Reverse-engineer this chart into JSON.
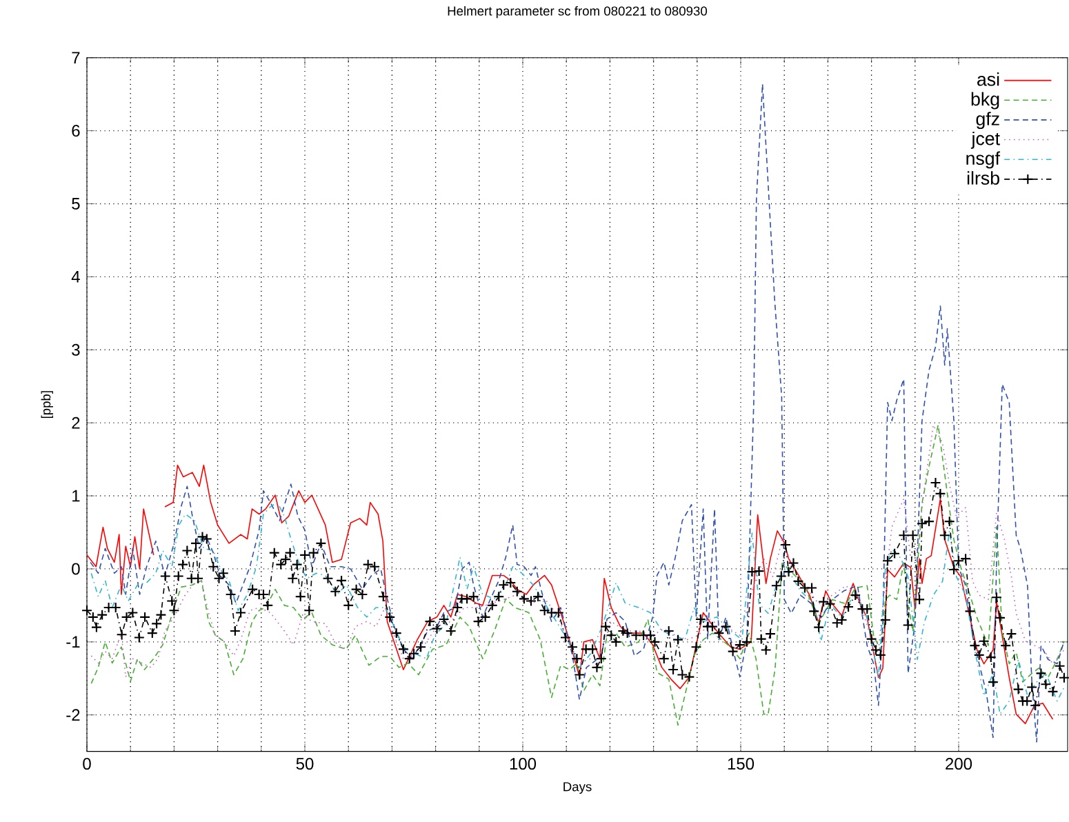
{
  "chart_data": {
    "type": "line",
    "title": "Helmert parameter sc from 080221 to 080930",
    "xlabel": "Days",
    "ylabel": "[ppb]",
    "xlim": [
      0,
      225
    ],
    "ylim": [
      -2.5,
      7
    ],
    "xticks": [
      0,
      50,
      100,
      150,
      200
    ],
    "yticks": [
      -2,
      -1,
      0,
      1,
      2,
      3,
      4,
      5,
      6,
      7
    ],
    "grid": true,
    "legend": "top right",
    "series": [
      {
        "name": "asi",
        "color": "#ff0000",
        "line_style": "solid",
        "marker": "none",
        "x": [
          0,
          2.1,
          3.7,
          4.7,
          6.3,
          7.4,
          7.9,
          8.9,
          10,
          11,
          12.1,
          13,
          15.3,
          16.5,
          17.9,
          19.8,
          20.8,
          22.1,
          24.2,
          25.8,
          26.8,
          28.4,
          30,
          32.6,
          35.3,
          36.8,
          37.9,
          39.5,
          41,
          43.2,
          44.7,
          46.3,
          48.6,
          50,
          51.6,
          54.7,
          56.3,
          58.4,
          60.5,
          62.6,
          64.2,
          65,
          66.8,
          67.9,
          68.9,
          72.6,
          75.8,
          78.2,
          80.3,
          81.9,
          83.5,
          85,
          87,
          89.3,
          90.8,
          93,
          95.6,
          97.2,
          98.7,
          100.8,
          102.4,
          105,
          106.6,
          108.7,
          110.8,
          113,
          114,
          116,
          117.7,
          118.7,
          120.3,
          122.4,
          124.5,
          127.7,
          129.8,
          131.9,
          134,
          136.1,
          138.2,
          139.8,
          141.4,
          144.5,
          147.7,
          149.8,
          152.4,
          153.9,
          155.8,
          156.8,
          158.4,
          160,
          161,
          163.2,
          165.8,
          167.9,
          169.5,
          171,
          173.2,
          175.8,
          177.4,
          179,
          180,
          181.6,
          182.6,
          183.7,
          185.3,
          187.4,
          189,
          190,
          191,
          191.6,
          192.6,
          193.7,
          195.8,
          196.8,
          198.9,
          200.5,
          202.6,
          204.2,
          205.8,
          207.9,
          208.7,
          210,
          211.6,
          213.2,
          215.3,
          217.4,
          219.3,
          221.6
        ],
        "values": [
          0.19,
          0.03,
          0.57,
          0.28,
          0.09,
          0.47,
          -0.35,
          0.31,
          0.03,
          0.44,
          0,
          0.82,
          0.19,
          null,
          0.85,
          0.91,
          1.42,
          1.26,
          1.32,
          1.13,
          1.42,
          0.91,
          0.6,
          0.35,
          0.47,
          0.41,
          0.82,
          0.75,
          0.82,
          1.01,
          0.63,
          0.72,
          1.07,
          0.91,
          1.01,
          0.6,
          0.09,
          0.13,
          0.63,
          0.69,
          0.6,
          0.91,
          0.75,
          0.38,
          -0.72,
          -1.38,
          -0.97,
          -0.72,
          -0.66,
          -0.5,
          -0.66,
          -0.35,
          -0.38,
          -0.47,
          -0.5,
          -0.09,
          -0.09,
          -0.16,
          -0.28,
          -0.35,
          -0.22,
          -0.09,
          -0.22,
          -0.6,
          -1.0,
          -1.48,
          -1.0,
          -0.97,
          -1.23,
          -0.13,
          -0.53,
          -0.79,
          -0.88,
          -0.88,
          -1.04,
          -1.35,
          -1.51,
          -1.64,
          -1.48,
          -1.04,
          -0.6,
          -0.85,
          -1.07,
          -1.1,
          -1.0,
          0.74,
          -0.2,
          0.14,
          0.52,
          0.36,
          0.14,
          -0.08,
          -0.36,
          -0.74,
          -0.3,
          -0.48,
          -0.64,
          -0.2,
          -0.48,
          -0.67,
          -0.99,
          -1.49,
          -1.36,
          -0.01,
          -0.11,
          0.08,
          0.02,
          -0.55,
          0.14,
          -0.2,
          0.14,
          0.18,
          0.96,
          0.4,
          0.02,
          -0.11,
          -0.67,
          -1.11,
          -1.3,
          -1.11,
          -0.45,
          -0.92,
          -1.49,
          -1.99,
          -2.12,
          -1.87,
          -1.84,
          -2.06
        ]
      },
      {
        "name": "bkg",
        "color": "#44b030",
        "line_style": "dashed",
        "marker": "none",
        "x": [
          1,
          2.6,
          4.2,
          5.8,
          7.9,
          10,
          11.6,
          13.2,
          15.3,
          17.4,
          20,
          21.6,
          24.2,
          26.3,
          27.9,
          29.5,
          31.6,
          33.7,
          35.8,
          37.9,
          39.5,
          41,
          43.2,
          45.3,
          47.4,
          49.5,
          51.6,
          53.7,
          56.3,
          59.5,
          61.6,
          64.7,
          67.4,
          69.5,
          71.6,
          73.7,
          76.1,
          79.3,
          82.4,
          85.6,
          87.7,
          90.8,
          93.5,
          96.1,
          98.2,
          101.4,
          104,
          106.6,
          108.7,
          110.8,
          112.4,
          114,
          116,
          117.7,
          119.3,
          121.4,
          123.5,
          126.6,
          128.7,
          130.8,
          133.5,
          135.6,
          137.2,
          139.3,
          141.4,
          143.5,
          145.6,
          147.7,
          149.8,
          151.9,
          153.5,
          155.3,
          156.3,
          157.9,
          159.5,
          161.6,
          164.7,
          167.9,
          171,
          174.2,
          176.3,
          179,
          180.5,
          182.1,
          183.2,
          184.2,
          185.8,
          187.4,
          188.4,
          189.5,
          191.6,
          193.2,
          195.3,
          197.4,
          198.9,
          200.5,
          202.6,
          204.2,
          206.8,
          208.7,
          210,
          211.6,
          213.2,
          214.7,
          216.8,
          218.4,
          220.5,
          222.6,
          224.2
        ],
        "values": [
          -1.57,
          -1.35,
          -1.0,
          -1.29,
          -1.07,
          -1.54,
          -1.23,
          -1.38,
          -1.23,
          -1.04,
          -0.53,
          -0.25,
          -0.22,
          -0.16,
          -0.72,
          -0.91,
          -1.0,
          -1.45,
          -1.23,
          -0.72,
          -0.57,
          -0.53,
          -0.28,
          -0.5,
          -0.53,
          -0.69,
          -0.6,
          -0.91,
          -1.04,
          -1.1,
          -0.91,
          -1.32,
          -1.2,
          -1.2,
          -1.35,
          -1.29,
          -1.45,
          -1.1,
          -1.04,
          -0.66,
          -0.79,
          -1.23,
          -0.85,
          -0.41,
          -0.53,
          -0.6,
          -0.97,
          -1.76,
          -1.32,
          -1.38,
          -1.29,
          -1.67,
          -1.45,
          -1.6,
          -0.91,
          -0.88,
          -1.07,
          -1.0,
          -0.69,
          -1.42,
          -1.51,
          -2.14,
          -1.73,
          -1.19,
          -0.97,
          -0.88,
          -0.97,
          -1.07,
          -1.23,
          -0.88,
          -1.23,
          -1.99,
          -1.99,
          -1.36,
          0.08,
          -0.04,
          -0.23,
          -0.74,
          -0.42,
          -0.48,
          -0.26,
          -0.23,
          -0.92,
          -1.11,
          -0.42,
          -0.36,
          -0.42,
          0.08,
          -0.48,
          -0.86,
          0.9,
          1.4,
          1.97,
          1.03,
          0.4,
          0.02,
          -0.36,
          -0.67,
          -1.05,
          0.58,
          -0.86,
          -1.3,
          -1.14,
          -1.55,
          -1.43,
          -1.36,
          -1.49,
          -1.24,
          -0.99
        ]
      },
      {
        "name": "gfz",
        "color": "#3050b0",
        "line_style": "dashed",
        "marker": "none",
        "x": [
          0.8,
          2.6,
          4.2,
          6.3,
          7.9,
          8.9,
          10.5,
          12.1,
          13.7,
          15.8,
          17.9,
          20,
          21.6,
          23,
          24.2,
          25.8,
          27.4,
          29,
          30.5,
          32.6,
          34.2,
          35.8,
          37.4,
          39.5,
          40.5,
          42.1,
          44.2,
          46.8,
          48.4,
          50,
          51.6,
          53.7,
          55.8,
          58.4,
          60.5,
          63.2,
          65.3,
          67.4,
          68.9,
          70.5,
          72.6,
          74.7,
          78.2,
          80.3,
          81.9,
          84.5,
          86.1,
          87.7,
          88.7,
          90.8,
          92.4,
          94.5,
          96.1,
          97.7,
          98.7,
          100.3,
          101.9,
          102.9,
          104.5,
          106.6,
          108.7,
          111.4,
          113,
          114.6,
          116.6,
          118.2,
          119.3,
          121.4,
          123.5,
          125.6,
          127.7,
          129.8,
          130.8,
          132.4,
          133.5,
          135,
          136.6,
          138.7,
          139.8,
          141.4,
          142.4,
          144,
          145,
          146.6,
          148.2,
          149.8,
          151.4,
          153,
          153.6,
          155,
          157.8,
          159.4,
          160,
          161.6,
          163.7,
          166.3,
          168.4,
          171,
          173.7,
          176.8,
          179,
          180.5,
          181.6,
          182.6,
          183.7,
          184.7,
          185.8,
          187.4,
          188.4,
          190,
          191.6,
          193.2,
          194.7,
          195.8,
          196.8,
          197.4,
          198.9,
          200,
          201.6,
          203.2,
          204.7,
          206.3,
          207.9,
          208.7,
          210,
          211.6,
          213.2,
          214.2,
          215.8,
          216.8,
          217.9,
          218.9,
          220.5,
          222.6,
          224.2
        ],
        "values": [
          0.09,
          -0.06,
          0.28,
          -0.06,
          0.03,
          -0.35,
          0.28,
          -0.35,
          0.03,
          0.38,
          -0.09,
          0.35,
          0.85,
          1.13,
          0.72,
          0.28,
          0.44,
          0.22,
          -0.09,
          -0.22,
          -0.47,
          -0.22,
          0.03,
          0.53,
          1.07,
          0.91,
          0.66,
          1.16,
          0.72,
          0.53,
          0.03,
          0.35,
          0.03,
          0.03,
          0,
          -0.28,
          -0.09,
          0,
          -0.41,
          -0.79,
          -1.1,
          -1.23,
          -0.85,
          -0.79,
          -0.6,
          -0.53,
          0,
          0.09,
          -0.22,
          -0.66,
          -0.44,
          -0.16,
          0.16,
          0.6,
          0.06,
          0.03,
          -0.09,
          0.03,
          -0.35,
          -0.72,
          -0.53,
          -1.19,
          -1.79,
          -1.35,
          -1.26,
          -1.16,
          -0.69,
          -0.6,
          -0.72,
          -1.19,
          -1.1,
          -0.66,
          -0.09,
          0.09,
          -0.22,
          0.16,
          0.66,
          0.88,
          -0.66,
          0.82,
          -0.97,
          0.82,
          -0.97,
          -0.66,
          -1.1,
          -1.48,
          -0.97,
          2.3,
          5.05,
          6.64,
          3.67,
          2.35,
          -0.42,
          -0.61,
          -0.36,
          -0.48,
          -0.67,
          -0.42,
          -0.3,
          -0.23,
          -1.05,
          -1.3,
          -1.87,
          -0.74,
          2.28,
          2.03,
          2.31,
          2.6,
          -1.43,
          -0.74,
          2.03,
          2.72,
          3.04,
          3.6,
          2.79,
          3.29,
          2.03,
          0.02,
          -0.23,
          -0.92,
          -1.3,
          -1.68,
          -2.31,
          0.14,
          2.53,
          2.28,
          0.46,
          0.27,
          -0.23,
          -1.55,
          -2.37,
          -1.05,
          -1.24,
          -1.3,
          -0.99
        ]
      },
      {
        "name": "jcet",
        "color": "#c060c0",
        "line_style": "dotted",
        "marker": "none",
        "x": [
          1,
          2.6,
          4.2,
          5.8,
          7.9,
          8.9,
          10.5,
          12.6,
          14.7,
          16.3,
          17.9,
          20,
          22.6,
          24.7,
          26.3,
          27.9,
          29.5,
          31.6,
          33.7,
          35.3,
          37.4,
          39.5,
          42.1,
          45.3,
          47.4,
          49.5,
          51.6,
          54.7,
          56.8,
          59.5,
          61.6,
          64.2,
          66.3,
          68.4,
          70.5,
          72.6,
          75.8,
          77.9,
          80.3,
          83.5,
          86.6,
          89.8,
          93,
          96.1,
          98.7,
          101.9,
          105,
          107.6,
          110.3,
          113,
          115.5,
          118.2,
          120.3,
          123.5,
          126.6,
          129.8,
          132.4,
          135,
          137.7,
          140.3,
          143.5,
          146.6,
          149.8,
          153,
          155.3,
          157.4,
          159.5,
          161.6,
          164.7,
          167.9,
          171,
          174.2,
          177.4,
          179.5,
          181.6,
          183.2,
          184.7,
          187.4,
          189,
          190.5,
          192.1,
          194.2,
          196.3,
          197.9,
          199.5,
          201.6,
          203.2,
          204.7,
          206.8,
          208.7,
          210.5,
          212.1,
          213.2,
          215.3,
          217.4,
          219.5,
          221.6,
          224.2
        ],
        "values": [
          -1.19,
          -1.29,
          -1.13,
          -1.23,
          -0.88,
          -1.48,
          -1.23,
          -1.29,
          -1.35,
          -1.23,
          -0.85,
          -0.66,
          -0.35,
          -0.19,
          -0.16,
          -0.6,
          -0.91,
          -1.0,
          -1.19,
          -0.97,
          -0.57,
          -0.53,
          -0.6,
          -0.85,
          -1.04,
          -0.63,
          -0.72,
          -0.75,
          -1.0,
          -1.1,
          -0.79,
          -0.72,
          -0.79,
          -0.53,
          -0.91,
          -1.23,
          -1.16,
          -1.0,
          -0.79,
          -0.72,
          -0.53,
          -0.53,
          -0.47,
          -0.41,
          -0.35,
          -0.47,
          -0.41,
          -0.6,
          -0.97,
          -1.29,
          -1.23,
          -1.1,
          -0.72,
          -0.85,
          -0.85,
          -0.91,
          -0.82,
          -0.91,
          -0.97,
          -0.91,
          -0.72,
          -0.79,
          -0.91,
          -0.22,
          0.14,
          -0.11,
          0.4,
          0.02,
          -0.23,
          -0.48,
          -0.36,
          -0.23,
          -0.48,
          -0.86,
          -1.11,
          -0.17,
          0.58,
          0.96,
          0.14,
          0.27,
          1.09,
          1.97,
          1.72,
          1.15,
          0.71,
          0.84,
          -0.17,
          -0.36,
          -0.42,
          0.77,
          0.4,
          -0.11,
          -0.61,
          -0.99,
          -1.05,
          -1.11,
          -1.3,
          -1.11
        ]
      },
      {
        "name": "nsgf",
        "color": "#30b8d0",
        "line_style": "dashdot",
        "marker": "none",
        "x": [
          1,
          2.6,
          4.2,
          5.8,
          7.9,
          9.5,
          11.6,
          13.7,
          15.8,
          17.4,
          19.5,
          21.1,
          22.6,
          24.7,
          26.8,
          29,
          31.1,
          32.6,
          34.7,
          36.8,
          38.9,
          40.5,
          42.1,
          43.7,
          45.3,
          46.8,
          48.9,
          50.5,
          52.6,
          54.7,
          57.4,
          59.5,
          62.1,
          64.2,
          66.3,
          68.4,
          70.5,
          72.6,
          75.3,
          77.9,
          79.8,
          82.4,
          85.6,
          87.2,
          88.7,
          90.8,
          93.5,
          96.1,
          97.7,
          99.8,
          102.4,
          105,
          107.7,
          110.3,
          113,
          115.6,
          118.2,
          121.4,
          123.5,
          126.6,
          129.3,
          131.9,
          134.5,
          137.2,
          139.3,
          141.4,
          144.5,
          147.7,
          150.3,
          152.6,
          154.2,
          156.3,
          158.4,
          160.5,
          163.7,
          166.8,
          168.4,
          170.5,
          173.2,
          176.3,
          179,
          181.6,
          183.2,
          184.7,
          186.8,
          188.4,
          190.5,
          192.1,
          194.2,
          196.3,
          197.9,
          199.5,
          201.6,
          203.7,
          205.8,
          207.9,
          209.5,
          211.6,
          213.7,
          215.8,
          217.9,
          220,
          222.6,
          224.2
        ],
        "values": [
          -0.06,
          -0.38,
          -0.16,
          -0.53,
          -0.22,
          -0.44,
          -0.22,
          -0.19,
          -0.06,
          0.25,
          0.03,
          0.6,
          0.75,
          0.66,
          0.28,
          0.25,
          -0.06,
          -0.16,
          -0.57,
          -0.35,
          0.03,
          0.75,
          0.85,
          0.91,
          0.72,
          0.41,
          0.03,
          -0.13,
          -0.06,
          -0.09,
          -0.35,
          -0.22,
          -0.53,
          -0.66,
          -0.53,
          -0.53,
          -0.79,
          -1.07,
          -1.16,
          -1.23,
          -0.91,
          -0.75,
          0.16,
          -0.28,
          0.03,
          -0.35,
          -0.41,
          -0.22,
          0.03,
          -0.06,
          -0.22,
          -0.47,
          -0.72,
          -0.97,
          -1.35,
          -1.16,
          -0.79,
          -0.19,
          -0.47,
          -0.53,
          -0.6,
          -0.85,
          -0.91,
          -0.97,
          -0.53,
          -0.72,
          -0.66,
          -0.85,
          -0.97,
          0.49,
          -0.48,
          -0.61,
          -0.17,
          0.02,
          -0.3,
          -0.48,
          -0.99,
          -0.48,
          -0.67,
          -0.3,
          -0.67,
          -1.49,
          0.02,
          0.27,
          0.14,
          -0.11,
          -1.24,
          -0.74,
          -0.36,
          -0.17,
          0.52,
          -0.11,
          -0.36,
          -1.11,
          -1.74,
          -1.43,
          -1.99,
          -1.81,
          -1.24,
          -1.74,
          -1.55,
          -1.43,
          -1.81,
          -1.62
        ]
      },
      {
        "name": "ilrsb",
        "color": "#000000",
        "line_style": "dashdot",
        "marker": "cross",
        "x": [
          0,
          1.4,
          2.2,
          3.5,
          5,
          6.6,
          8,
          9.1,
          10.5,
          12,
          13.3,
          15,
          16,
          17,
          18,
          19.5,
          20,
          21,
          22,
          23,
          24,
          25,
          25.5,
          26.5,
          27.5,
          29,
          30.3,
          31.3,
          33,
          34,
          35.3,
          38,
          39.5,
          40.5,
          41.5,
          43,
          44.5,
          45.6,
          46.6,
          47.2,
          48.2,
          49,
          50,
          51,
          52,
          53.7,
          55.3,
          57,
          58.4,
          60,
          61.8,
          63.2,
          64.5,
          66,
          68,
          69.5,
          71,
          72.6,
          74,
          75,
          76.6,
          78.7,
          80.3,
          81.9,
          83.5,
          85,
          86,
          87.2,
          88.7,
          89.8,
          91.4,
          93,
          94.5,
          95.6,
          97.2,
          98.7,
          100.3,
          101.9,
          103.5,
          105,
          106.6,
          108.2,
          109.8,
          111.4,
          112.4,
          113,
          114.5,
          116,
          117,
          118,
          119,
          120.3,
          121.4,
          123,
          124,
          126,
          127.7,
          129.3,
          130.3,
          132.4,
          133.5,
          134.5,
          135.6,
          136.6,
          138.2,
          139.8,
          140.8,
          142.4,
          143.5,
          145,
          146.6,
          148.2,
          149.8,
          151.4,
          152.6,
          154.2,
          154.7,
          155.8,
          156.8,
          158.2,
          159.3,
          160.3,
          161,
          162.1,
          163.2,
          164.7,
          166.3,
          166.8,
          167.9,
          169,
          170.5,
          172.1,
          173.2,
          174.7,
          176.3,
          177.9,
          179,
          180,
          181,
          182.1,
          183.2,
          183.7,
          185.3,
          187.4,
          188.4,
          189.5,
          191,
          191.6,
          193.2,
          194.7,
          195.8,
          196.8,
          197.9,
          198.9,
          200,
          201.6,
          202.6,
          203.7,
          204.7,
          205.8,
          207.4,
          207.9,
          208.7,
          209.5,
          210.8,
          212.1,
          213.7,
          214.7,
          215.7,
          216.8,
          217.6,
          218.9,
          220,
          221.6,
          223.2,
          224.2
        ],
        "values": [
          -0.57,
          -0.66,
          -0.8,
          -0.63,
          -0.53,
          -0.53,
          -0.9,
          -0.66,
          -0.6,
          -0.94,
          -0.66,
          -0.88,
          -0.75,
          -0.63,
          -0.1,
          -0.44,
          -0.57,
          -0.1,
          0.06,
          0.25,
          -0.13,
          0.35,
          -0.13,
          0.44,
          0.41,
          0.03,
          -0.13,
          -0.06,
          -0.35,
          -0.85,
          -0.6,
          -0.28,
          -0.35,
          -0.35,
          -0.5,
          0.22,
          0.06,
          0.13,
          0.22,
          -0.13,
          0.06,
          -0.38,
          0.19,
          -0.57,
          0.22,
          0.35,
          -0.13,
          -0.31,
          -0.16,
          -0.5,
          -0.28,
          -0.35,
          0.06,
          0.03,
          -0.38,
          -0.66,
          -0.88,
          -1.1,
          -1.23,
          -1.16,
          -1.07,
          -0.72,
          -0.82,
          -0.69,
          -0.85,
          -0.53,
          -0.41,
          -0.41,
          -0.38,
          -0.72,
          -0.66,
          -0.5,
          -0.38,
          -0.22,
          -0.19,
          -0.31,
          -0.41,
          -0.44,
          -0.38,
          -0.57,
          -0.6,
          -0.6,
          -0.94,
          -1.07,
          -1.23,
          -1.45,
          -1.1,
          -1.1,
          -1.35,
          -1.23,
          -0.79,
          -0.91,
          -1.0,
          -0.85,
          -0.88,
          -0.91,
          -0.91,
          -0.91,
          -1.0,
          -1.23,
          -0.85,
          -1.38,
          -0.97,
          -1.45,
          -1.48,
          -1.07,
          -0.69,
          -0.79,
          -0.79,
          -0.88,
          -0.79,
          -1.13,
          -1.04,
          -1.0,
          -0.04,
          -0.03,
          -0.96,
          -1.11,
          -0.89,
          -0.23,
          -0.1,
          0.33,
          -0.04,
          0.08,
          -0.17,
          -0.26,
          -0.26,
          -0.58,
          -0.8,
          -0.45,
          -0.48,
          -0.74,
          -0.7,
          -0.52,
          -0.36,
          -0.55,
          -0.55,
          -0.96,
          -1.11,
          -1.18,
          -0.7,
          0.11,
          0.21,
          0.46,
          -0.77,
          0.46,
          -0.42,
          0.62,
          0.65,
          1.18,
          1.03,
          0.46,
          0.65,
          -0.01,
          0.11,
          0.14,
          -0.58,
          -1.05,
          -1.18,
          -0.99,
          -1.21,
          -1.55,
          -0.39,
          -0.67,
          -1.05,
          -0.89,
          -1.65,
          -1.81,
          -1.81,
          -1.62,
          -1.87,
          -1.43,
          -1.58,
          -1.68,
          -1.33,
          -1.49
        ]
      }
    ]
  }
}
